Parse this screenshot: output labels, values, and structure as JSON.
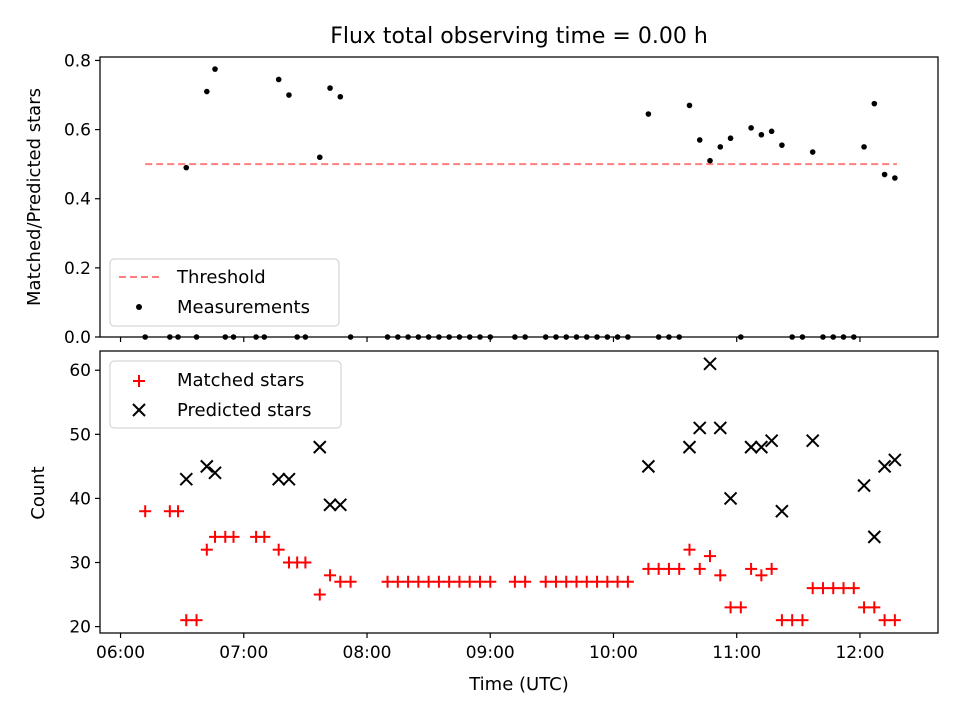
{
  "chart_data": [
    {
      "type": "scatter",
      "title": "Flux total observing time = 0.00 h",
      "ylabel": "Matched/Predicted stars",
      "xlabel": "",
      "ylim": [
        0,
        0.81
      ],
      "yticks": [
        "0.0",
        "0.2",
        "0.4",
        "0.6",
        "0.8"
      ],
      "yticks_values": [
        0.0,
        0.2,
        0.4,
        0.6,
        0.8
      ],
      "grid": false,
      "legend_position": "lower-left",
      "threshold": {
        "name": "Threshold",
        "value": 0.5,
        "x_start": "06:12",
        "x_end": "12:18",
        "color": "#ff7f7f"
      },
      "series": [
        {
          "name": "Measurements",
          "color": "#000000",
          "points": [
            [
              "06:12",
              0.0
            ],
            [
              "06:24",
              0.0
            ],
            [
              "06:28",
              0.0
            ],
            [
              "06:32",
              0.49
            ],
            [
              "06:37",
              0.0
            ],
            [
              "06:42",
              0.71
            ],
            [
              "06:46",
              0.775
            ],
            [
              "06:51",
              0.0
            ],
            [
              "06:55",
              0.0
            ],
            [
              "07:06",
              0.0
            ],
            [
              "07:10",
              0.0
            ],
            [
              "07:17",
              0.745
            ],
            [
              "07:22",
              0.7
            ],
            [
              "07:26",
              0.0
            ],
            [
              "07:30",
              0.0
            ],
            [
              "07:37",
              0.52
            ],
            [
              "07:42",
              0.72
            ],
            [
              "07:47",
              0.695
            ],
            [
              "07:52",
              0.0
            ],
            [
              "08:10",
              0.0
            ],
            [
              "08:15",
              0.0
            ],
            [
              "08:20",
              0.0
            ],
            [
              "08:25",
              0.0
            ],
            [
              "08:30",
              0.0
            ],
            [
              "08:35",
              0.0
            ],
            [
              "08:40",
              0.0
            ],
            [
              "08:45",
              0.0
            ],
            [
              "08:50",
              0.0
            ],
            [
              "08:55",
              0.0
            ],
            [
              "09:00",
              0.0
            ],
            [
              "09:12",
              0.0
            ],
            [
              "09:17",
              0.0
            ],
            [
              "09:27",
              0.0
            ],
            [
              "09:32",
              0.0
            ],
            [
              "09:37",
              0.0
            ],
            [
              "09:42",
              0.0
            ],
            [
              "09:47",
              0.0
            ],
            [
              "09:52",
              0.0
            ],
            [
              "09:57",
              0.0
            ],
            [
              "10:02",
              0.0
            ],
            [
              "10:07",
              0.0
            ],
            [
              "10:17",
              0.645
            ],
            [
              "10:22",
              0.0
            ],
            [
              "10:27",
              0.0
            ],
            [
              "10:32",
              0.0
            ],
            [
              "10:37",
              0.67
            ],
            [
              "10:42",
              0.57
            ],
            [
              "10:47",
              0.51
            ],
            [
              "10:52",
              0.55
            ],
            [
              "10:57",
              0.575
            ],
            [
              "11:02",
              0.0
            ],
            [
              "11:07",
              0.605
            ],
            [
              "11:12",
              0.585
            ],
            [
              "11:17",
              0.595
            ],
            [
              "11:22",
              0.555
            ],
            [
              "11:27",
              0.0
            ],
            [
              "11:32",
              0.0
            ],
            [
              "11:37",
              0.535
            ],
            [
              "11:42",
              0.0
            ],
            [
              "11:47",
              0.0
            ],
            [
              "11:52",
              0.0
            ],
            [
              "11:57",
              0.0
            ],
            [
              "12:02",
              0.55
            ],
            [
              "12:07",
              0.675
            ],
            [
              "12:12",
              0.47
            ],
            [
              "12:17",
              0.46
            ]
          ]
        }
      ]
    },
    {
      "type": "scatter",
      "title": "",
      "xlabel": "Time (UTC)",
      "ylabel": "Count",
      "xlim": [
        "05:50",
        "12:38"
      ],
      "xticks": [
        "06:00",
        "07:00",
        "08:00",
        "09:00",
        "10:00",
        "11:00",
        "12:00"
      ],
      "ylim": [
        19,
        63
      ],
      "yticks": [
        "20",
        "30",
        "40",
        "50",
        "60"
      ],
      "yticks_values": [
        20,
        30,
        40,
        50,
        60
      ],
      "grid": false,
      "legend_position": "upper-left",
      "series": [
        {
          "name": "Matched stars",
          "marker": "plus",
          "color": "#ff0000",
          "points": [
            [
              "06:12",
              38
            ],
            [
              "06:24",
              38
            ],
            [
              "06:28",
              38
            ],
            [
              "06:32",
              21
            ],
            [
              "06:37",
              21
            ],
            [
              "06:42",
              32
            ],
            [
              "06:46",
              34
            ],
            [
              "06:51",
              34
            ],
            [
              "06:55",
              34
            ],
            [
              "07:06",
              34
            ],
            [
              "07:10",
              34
            ],
            [
              "07:17",
              32
            ],
            [
              "07:22",
              30
            ],
            [
              "07:26",
              30
            ],
            [
              "07:30",
              30
            ],
            [
              "07:37",
              25
            ],
            [
              "07:42",
              28
            ],
            [
              "07:47",
              27
            ],
            [
              "07:52",
              27
            ],
            [
              "08:10",
              27
            ],
            [
              "08:15",
              27
            ],
            [
              "08:20",
              27
            ],
            [
              "08:25",
              27
            ],
            [
              "08:30",
              27
            ],
            [
              "08:35",
              27
            ],
            [
              "08:40",
              27
            ],
            [
              "08:45",
              27
            ],
            [
              "08:50",
              27
            ],
            [
              "08:55",
              27
            ],
            [
              "09:00",
              27
            ],
            [
              "09:12",
              27
            ],
            [
              "09:17",
              27
            ],
            [
              "09:27",
              27
            ],
            [
              "09:32",
              27
            ],
            [
              "09:37",
              27
            ],
            [
              "09:42",
              27
            ],
            [
              "09:47",
              27
            ],
            [
              "09:52",
              27
            ],
            [
              "09:57",
              27
            ],
            [
              "10:02",
              27
            ],
            [
              "10:07",
              27
            ],
            [
              "10:17",
              29
            ],
            [
              "10:22",
              29
            ],
            [
              "10:27",
              29
            ],
            [
              "10:32",
              29
            ],
            [
              "10:37",
              32
            ],
            [
              "10:42",
              29
            ],
            [
              "10:47",
              31
            ],
            [
              "10:52",
              28
            ],
            [
              "10:57",
              23
            ],
            [
              "11:02",
              23
            ],
            [
              "11:07",
              29
            ],
            [
              "11:12",
              28
            ],
            [
              "11:17",
              29
            ],
            [
              "11:22",
              21
            ],
            [
              "11:27",
              21
            ],
            [
              "11:32",
              21
            ],
            [
              "11:37",
              26
            ],
            [
              "11:42",
              26
            ],
            [
              "11:47",
              26
            ],
            [
              "11:52",
              26
            ],
            [
              "11:57",
              26
            ],
            [
              "12:02",
              23
            ],
            [
              "12:07",
              23
            ],
            [
              "12:12",
              21
            ],
            [
              "12:17",
              21
            ]
          ]
        },
        {
          "name": "Predicted stars",
          "marker": "x",
          "color": "#000000",
          "points": [
            [
              "06:32",
              43
            ],
            [
              "06:42",
              45
            ],
            [
              "06:46",
              44
            ],
            [
              "07:17",
              43
            ],
            [
              "07:22",
              43
            ],
            [
              "07:37",
              48
            ],
            [
              "07:42",
              39
            ],
            [
              "07:47",
              39
            ],
            [
              "10:17",
              45
            ],
            [
              "10:37",
              48
            ],
            [
              "10:42",
              51
            ],
            [
              "10:47",
              61
            ],
            [
              "10:52",
              51
            ],
            [
              "10:57",
              40
            ],
            [
              "11:07",
              48
            ],
            [
              "11:12",
              48
            ],
            [
              "11:17",
              49
            ],
            [
              "11:22",
              38
            ],
            [
              "11:37",
              49
            ],
            [
              "12:02",
              42
            ],
            [
              "12:07",
              34
            ],
            [
              "12:12",
              45
            ],
            [
              "12:17",
              46
            ]
          ]
        }
      ]
    }
  ]
}
